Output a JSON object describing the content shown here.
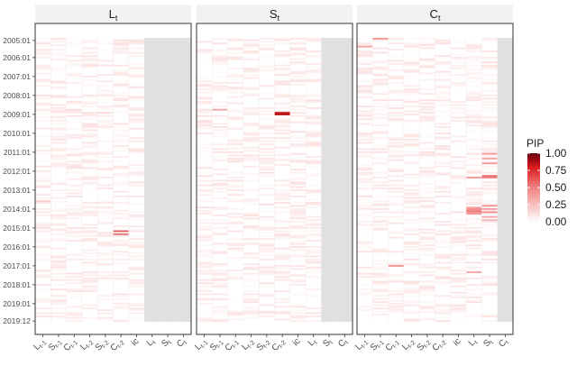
{
  "chart_data": {
    "type": "heatmap",
    "panels": [
      {
        "title": "L",
        "title_sub": "t"
      },
      {
        "title": "S",
        "title_sub": "t"
      },
      {
        "title": "C",
        "title_sub": "t"
      }
    ],
    "x_labels": [
      {
        "main": "L",
        "sub": "t-1"
      },
      {
        "main": "S",
        "sub": "t-1"
      },
      {
        "main": "C",
        "sub": "t-1"
      },
      {
        "main": "L",
        "sub": "t-2"
      },
      {
        "main": "S",
        "sub": "t-2"
      },
      {
        "main": "C",
        "sub": "t-2"
      },
      {
        "main": "ic",
        "sub": ""
      },
      {
        "main": "L",
        "sub": "t"
      },
      {
        "main": "S",
        "sub": "t"
      },
      {
        "main": "C",
        "sub": "t"
      }
    ],
    "y_ticks": [
      "2005:01",
      "2006:01",
      "2007:01",
      "2008:01",
      "2009:01",
      "2010:01",
      "2011:01",
      "2012:01",
      "2013:01",
      "2014:01",
      "2015:01",
      "2016:01",
      "2017:01",
      "2018:01",
      "2019:01",
      "2019:12"
    ],
    "n_months": 180,
    "excluded_columns": [
      [
        7,
        8,
        9
      ],
      [
        8,
        9
      ],
      [
        9
      ]
    ],
    "highlights": [
      {
        "panel": 0,
        "col": 5,
        "month": 122,
        "pip": 0.6
      },
      {
        "panel": 0,
        "col": 5,
        "month": 124,
        "pip": 0.55
      },
      {
        "panel": 0,
        "col": 0,
        "month": 103,
        "pip": 0.2
      },
      {
        "panel": 0,
        "col": 2,
        "month": 45,
        "pip": 0.15
      },
      {
        "panel": 0,
        "col": 4,
        "month": 47,
        "pip": 0.15
      },
      {
        "panel": 1,
        "col": 5,
        "month": 47,
        "pip": 0.85
      },
      {
        "panel": 1,
        "col": 5,
        "month": 48,
        "pip": 0.85
      },
      {
        "panel": 1,
        "col": 1,
        "month": 45,
        "pip": 0.35
      },
      {
        "panel": 2,
        "col": 1,
        "month": 0,
        "pip": 0.45
      },
      {
        "panel": 2,
        "col": 0,
        "month": 5,
        "pip": 0.35
      },
      {
        "panel": 2,
        "col": 2,
        "month": 144,
        "pip": 0.4
      },
      {
        "panel": 2,
        "col": 7,
        "month": 88,
        "pip": 0.4
      },
      {
        "panel": 2,
        "col": 7,
        "month": 107,
        "pip": 0.35
      },
      {
        "panel": 2,
        "col": 7,
        "month": 108,
        "pip": 0.45
      },
      {
        "panel": 2,
        "col": 7,
        "month": 109,
        "pip": 0.5
      },
      {
        "panel": 2,
        "col": 7,
        "month": 110,
        "pip": 0.45
      },
      {
        "panel": 2,
        "col": 7,
        "month": 111,
        "pip": 0.4
      },
      {
        "panel": 2,
        "col": 7,
        "month": 148,
        "pip": 0.35
      },
      {
        "panel": 2,
        "col": 8,
        "month": 73,
        "pip": 0.4
      },
      {
        "panel": 2,
        "col": 8,
        "month": 76,
        "pip": 0.35
      },
      {
        "panel": 2,
        "col": 8,
        "month": 79,
        "pip": 0.4
      },
      {
        "panel": 2,
        "col": 8,
        "month": 87,
        "pip": 0.55
      },
      {
        "panel": 2,
        "col": 8,
        "month": 88,
        "pip": 0.5
      },
      {
        "panel": 2,
        "col": 8,
        "month": 106,
        "pip": 0.45
      },
      {
        "panel": 2,
        "col": 8,
        "month": 108,
        "pip": 0.4
      },
      {
        "panel": 2,
        "col": 8,
        "month": 110,
        "pip": 0.45
      },
      {
        "panel": 2,
        "col": 8,
        "month": 113,
        "pip": 0.35
      },
      {
        "panel": 2,
        "col": 8,
        "month": 115,
        "pip": 0.3
      }
    ],
    "background_pip_range": [
      0,
      0.12
    ],
    "legend": {
      "title": "PIP",
      "ticks": [
        "1.00",
        "0.75",
        "0.50",
        "0.25",
        "0.00"
      ],
      "low_color": "#ffffff",
      "high_color": "#67000d",
      "mid_color": "#e03030"
    },
    "colors": {
      "strip_bg": "#f2f2f2",
      "excluded": "#e0e0e0",
      "panel_border": "#333333"
    }
  }
}
